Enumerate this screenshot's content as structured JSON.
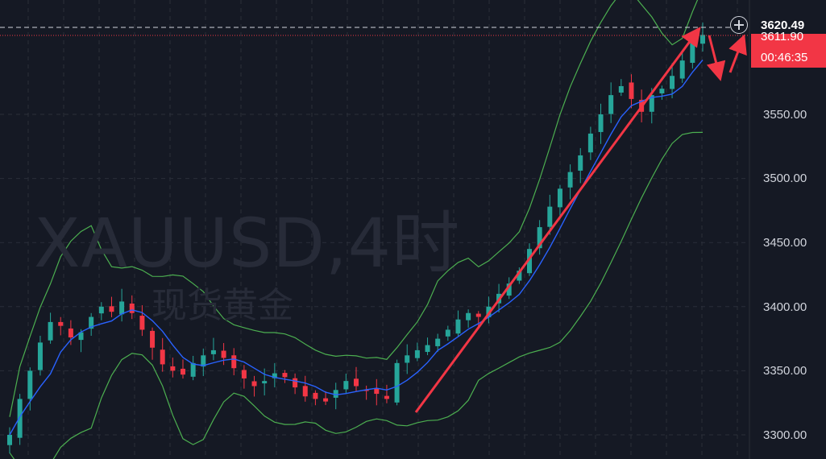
{
  "watermark": {
    "symbol": "XAUUSD,4时",
    "name": "现货黄金"
  },
  "price_axis": {
    "labels": [
      "3550.00",
      "3500.00",
      "3450.00",
      "3400.00",
      "3350.00",
      "3300.00"
    ]
  },
  "current_price": {
    "value": "3620.49",
    "partial_label": "3611.90",
    "countdown": "00:46:35"
  },
  "colors": {
    "background": "#151924",
    "up": "#26a69a",
    "down": "#f23645",
    "ma": "#2962ff",
    "bands": "#4caf50",
    "annotation": "#f23645",
    "grid": "#2a2e39"
  },
  "icons": {
    "crosshair": "plus-circle-icon"
  },
  "chart_data": {
    "type": "candlestick",
    "symbol": "XAUUSD",
    "timeframe": "4时",
    "y_axis_ticks": [
      3300,
      3350,
      3400,
      3450,
      3500,
      3550
    ],
    "ylim": [
      3290,
      3630
    ],
    "grid": true,
    "current_price": 3620.49,
    "close_series_estimate": [
      3300,
      3328,
      3350,
      3372,
      3388,
      3385,
      3376,
      3380,
      3392,
      3400,
      3396,
      3404,
      3395,
      3382,
      3368,
      3355,
      3350,
      3347,
      3356,
      3362,
      3366,
      3360,
      3352,
      3344,
      3338,
      3342,
      3348,
      3345,
      3337,
      3330,
      3328,
      3326,
      3335,
      3342,
      3338,
      3335,
      3332,
      3328,
      3356,
      3362,
      3366,
      3370,
      3375,
      3382,
      3390,
      3395,
      3392,
      3400,
      3410,
      3418,
      3428,
      3445,
      3462,
      3478,
      3492,
      3505,
      3518,
      3535,
      3550,
      3565,
      3572,
      3562,
      3552,
      3565,
      3570,
      3580,
      3592,
      3608,
      3612
    ],
    "ma_line": {
      "from": 3305,
      "to": 3580
    },
    "bollinger_upper": {
      "from": 3350,
      "to": 3618
    },
    "bollinger_lower": {
      "from": 3300,
      "to": 3508
    },
    "annotations": [
      {
        "type": "arrow",
        "from": [
          3318,
          "rally-start"
        ],
        "to": [
          3618,
          "peak"
        ],
        "color": "red"
      },
      {
        "type": "arrow",
        "direction": "down",
        "color": "red"
      },
      {
        "type": "arrow",
        "direction": "up",
        "color": "red"
      }
    ]
  }
}
